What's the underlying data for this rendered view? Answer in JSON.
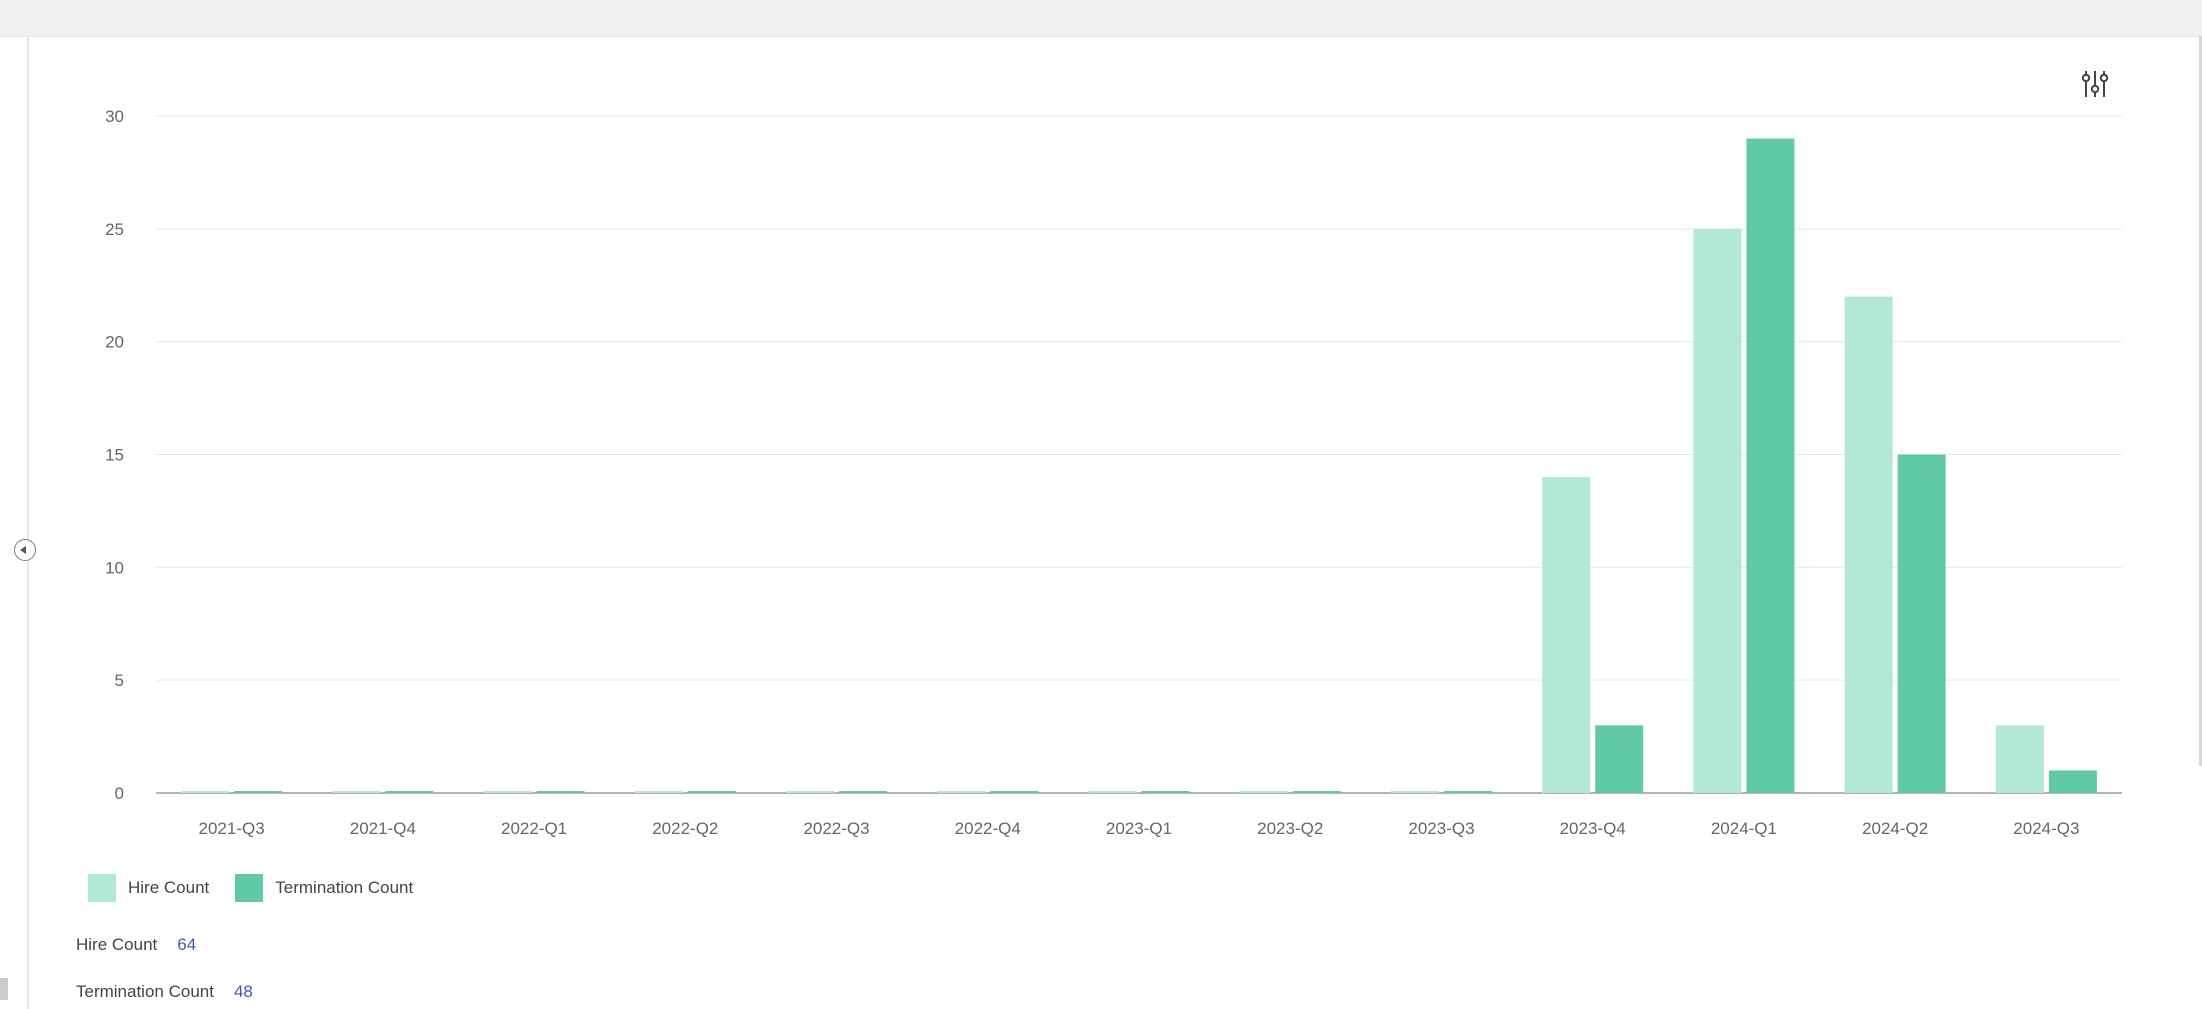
{
  "colors": {
    "hire": "#b3e8d8",
    "termination": "#62c9a8",
    "grid": "#e6e9e8",
    "axis": "#9a9a9a",
    "summary_value": "#3a5fa8"
  },
  "icons": {
    "settings": "sliders-icon",
    "collapse": "collapse-left-icon"
  },
  "chart_data": {
    "type": "bar",
    "categories": [
      "2021-Q3",
      "2021-Q4",
      "2022-Q1",
      "2022-Q2",
      "2022-Q3",
      "2022-Q4",
      "2023-Q1",
      "2023-Q2",
      "2023-Q3",
      "2023-Q4",
      "2024-Q1",
      "2024-Q2",
      "2024-Q3"
    ],
    "series": [
      {
        "name": "Hire Count",
        "values": [
          0,
          0,
          0,
          0,
          0,
          0,
          0,
          0,
          0,
          14,
          25,
          22,
          3
        ]
      },
      {
        "name": "Termination Count",
        "values": [
          0,
          0,
          0,
          0,
          0,
          0,
          0,
          0,
          0,
          3,
          29,
          15,
          1
        ]
      }
    ],
    "ylim": [
      0,
      30
    ],
    "yticks": [
      "0",
      "5",
      "10",
      "15",
      "20",
      "25",
      "30"
    ],
    "grid": true,
    "legend_position": "bottom-left"
  },
  "legend": {
    "hire_label": "Hire Count",
    "termination_label": "Termination Count"
  },
  "summary": {
    "hire_label": "Hire Count",
    "hire_value": "64",
    "termination_label": "Termination Count",
    "termination_value": "48"
  }
}
